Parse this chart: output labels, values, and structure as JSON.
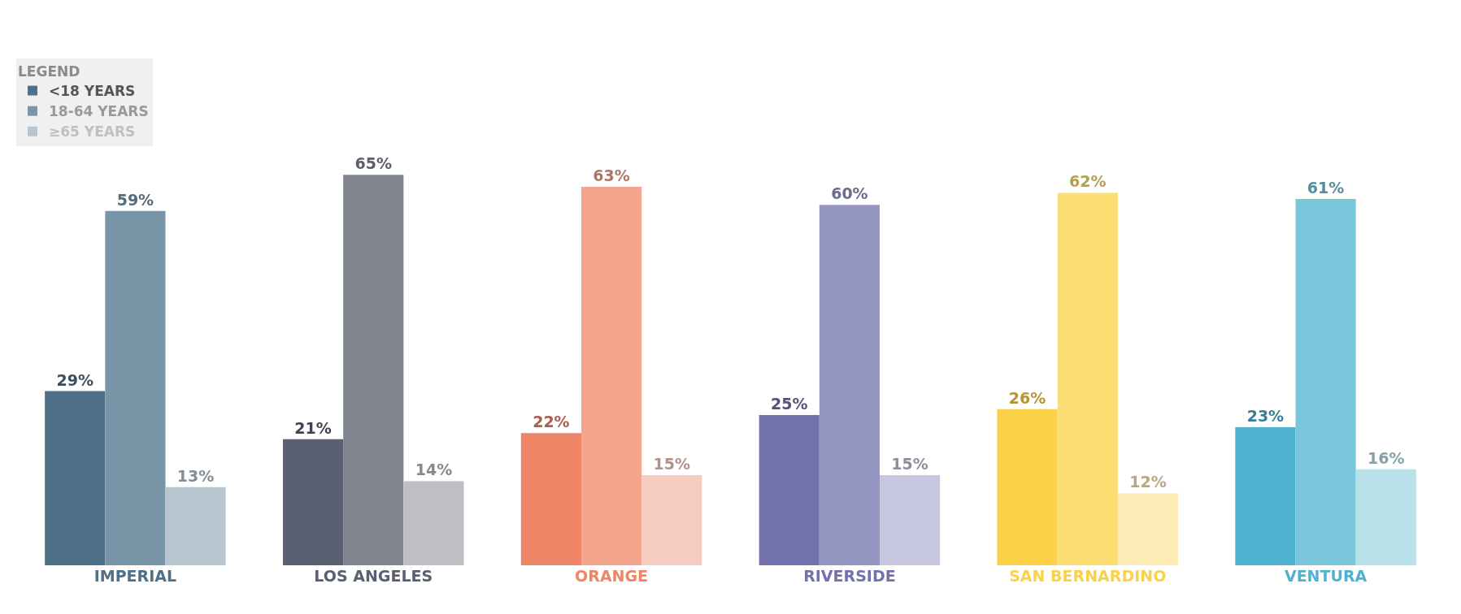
{
  "chart_data": {
    "type": "bar",
    "categories": [
      "IMPERIAL",
      "LOS ANGELES",
      "ORANGE",
      "RIVERSIDE",
      "SAN BERNARDINO",
      "VENTURA"
    ],
    "legend_title": "LEGEND",
    "legend": "top left",
    "data_labels": false,
    "series": [
      {
        "name": "<18 YEARS",
        "color": "#555555",
        "colors": [
          "#4e7189",
          "#5a5f72",
          "#ef8567",
          "#7372ad",
          "#fbd247",
          "#4fb3cf"
        ],
        "values": [
          29,
          21,
          22,
          25,
          26,
          23
        ],
        "value_labels": [
          "29%",
          "21%",
          "22%",
          "25%",
          "26%",
          "23%"
        ]
      },
      {
        "name": "18-64 YEARS",
        "color": "#999999",
        "colors": [
          "#7896a8",
          "#80848f",
          "#f3a58d",
          "#9595c1",
          "#fbdd73",
          "#7ac6db"
        ],
        "values": [
          59,
          65,
          63,
          60,
          62,
          61
        ],
        "value_labels": [
          "59%",
          "65%",
          "63%",
          "60%",
          "62%",
          "61%"
        ]
      },
      {
        "name": "≥65 YEARS",
        "color": "#c0c0c0",
        "colors": [
          "#b8c6cf",
          "#bdbfc5",
          "#f8cdc1",
          "#c6c6de",
          "#fdebb5",
          "#b8e1ea"
        ],
        "values": [
          13,
          14,
          15,
          15,
          12,
          16
        ],
        "value_labels": [
          "13%",
          "14%",
          "15%",
          "15%",
          "12%",
          "16%"
        ]
      }
    ]
  }
}
